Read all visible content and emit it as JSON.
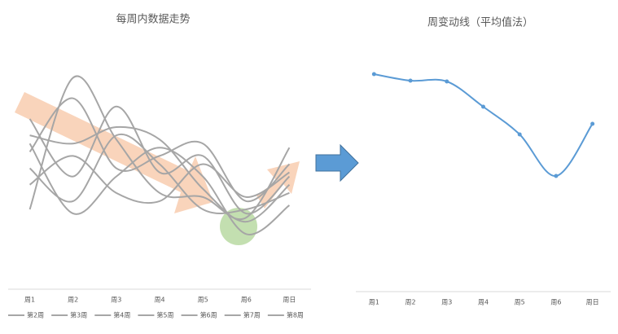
{
  "chart_data": [
    {
      "type": "line",
      "title": "每周内数据走势",
      "categories": [
        "周1",
        "周2",
        "周3",
        "周4",
        "周5",
        "周6",
        "周日"
      ],
      "series": [
        {
          "name": "第2周",
          "color": "#a6a6a6",
          "values": [
            97,
            257,
            182,
            117,
            112,
            87,
            172
          ]
        },
        {
          "name": "第3周",
          "color": "#a6a6a6",
          "values": [
            207,
            137,
            222,
            142,
            162,
            92,
            137
          ]
        },
        {
          "name": "第4周",
          "color": "#a6a6a6",
          "values": [
            187,
            177,
            197,
            182,
            122,
            82,
            127
          ]
        },
        {
          "name": "第5周",
          "color": "#a6a6a6",
          "values": [
            167,
            232,
            147,
            162,
            177,
            107,
            152
          ]
        },
        {
          "name": "第6周",
          "color": "#a6a6a6",
          "values": [
            147,
            107,
            187,
            152,
            97,
            97,
            117
          ]
        },
        {
          "name": "第7周",
          "color": "#a6a6a6",
          "values": [
            127,
            162,
            117,
            107,
            152,
            112,
            142
          ]
        },
        {
          "name": "第8周",
          "color": "#a6a6a6",
          "values": [
            177,
            92,
            137,
            172,
            137,
            67,
            102
          ]
        }
      ],
      "ylim": [
        0,
        300
      ],
      "legend": "bottom",
      "smooth": true
    },
    {
      "type": "line",
      "title": "周变动线（平均值法）",
      "categories": [
        "周1",
        "周2",
        "周3",
        "周4",
        "周5",
        "周6",
        "周日"
      ],
      "series": [
        {
          "color": "#5b9bd5",
          "values": [
            267,
            259,
            258,
            227,
            193,
            142,
            206
          ]
        }
      ],
      "ylim": [
        0,
        300
      ],
      "markers": true,
      "smooth": true
    }
  ]
}
